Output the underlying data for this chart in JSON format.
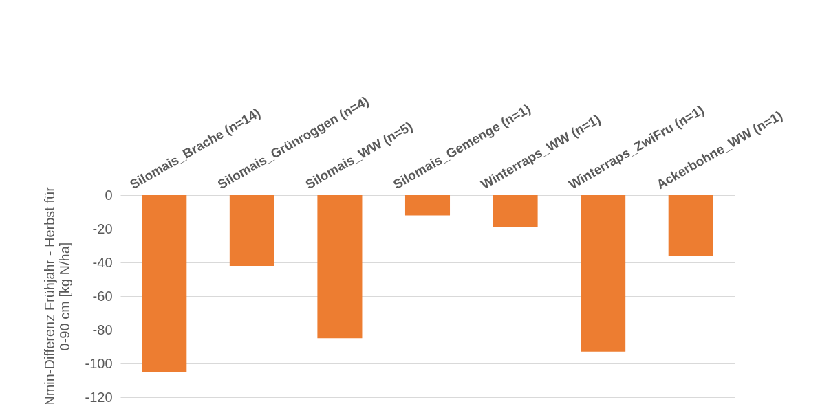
{
  "chart_data": {
    "type": "bar",
    "ylabel": "Nmin-Differenz Frühjahr - Herbst für\n0-90 cm [kg N/ha]",
    "categories": [
      "Silomais_Brache (n=14)",
      "Silomais_Grünroggen (n=4)",
      "Silomais_WW (n=5)",
      "Silomais_Gemenge (n=1)",
      "Winterraps_WW (n=1)",
      "Winterraps_ZwiFru (n=1)",
      "Ackerbohne_WW (n=1)"
    ],
    "values": [
      -105,
      -42,
      -85,
      -12,
      -19,
      -93,
      -36
    ],
    "color": "#ed7d31",
    "ylim": [
      -120,
      0
    ],
    "yticks": [
      -120,
      -100,
      -80,
      -60,
      -40,
      -20,
      0
    ],
    "grid": "y"
  }
}
